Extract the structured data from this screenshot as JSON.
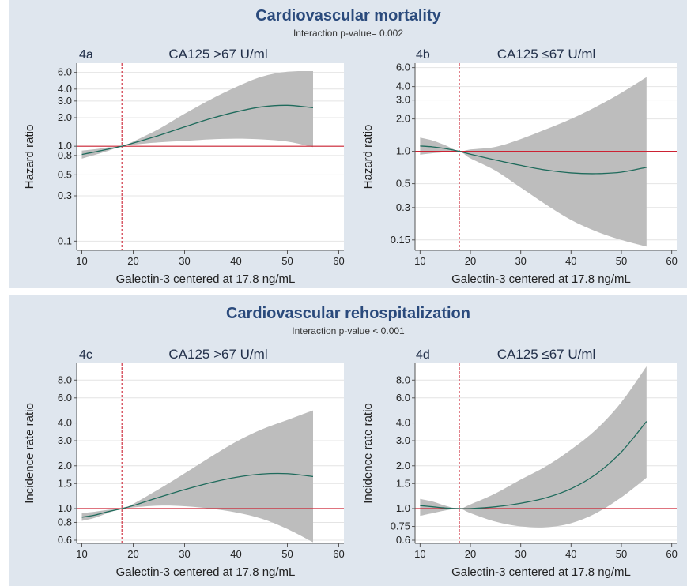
{
  "colors": {
    "background": "#dfe6ee",
    "plot_background": "#ffffff",
    "title": "#2a4a7c",
    "ci_band": "#bdbdbd",
    "fit_line": "#1f6b5c",
    "reference_line": "#cc2233",
    "grid": "#e4e4e4"
  },
  "sections": [
    {
      "title": "Cardiovascular mortality",
      "subtitle": "Interaction p-value= 0.002"
    },
    {
      "title": "Cardiovascular rehospitalization",
      "subtitle": "Interaction p-value < 0.001"
    }
  ],
  "chart_data": [
    {
      "type": "line",
      "panel_tag": "4a",
      "title": "CA125 >67 U/ml",
      "xlabel": "Galectin-3 centered at 17.8 ng/mL",
      "ylabel": "Hazard ratio",
      "xlim": [
        9,
        61
      ],
      "xticks": [
        10,
        20,
        30,
        40,
        50,
        60
      ],
      "ylim": [
        0.08,
        7.5
      ],
      "y_scale": "log",
      "yticks": [
        0.1,
        0.3,
        0.5,
        0.8,
        1.0,
        2.0,
        3.0,
        4.0,
        6.0
      ],
      "ytick_labels": [
        "0.1",
        "0.3",
        "0.5",
        "0.8",
        "1.0",
        "2.0",
        "3.0",
        "4.0",
        "6.0"
      ],
      "grid": true,
      "reference_y": 1.0,
      "reference_x": 17.8,
      "x": [
        10,
        12.5,
        15,
        17.8,
        20,
        25,
        30,
        35,
        40,
        45,
        50,
        55
      ],
      "estimate": [
        0.82,
        0.87,
        0.93,
        1.0,
        1.08,
        1.3,
        1.6,
        1.95,
        2.3,
        2.6,
        2.7,
        2.55
      ],
      "lower": [
        0.74,
        0.81,
        0.89,
        1.0,
        1.04,
        1.1,
        1.14,
        1.18,
        1.2,
        1.18,
        1.12,
        0.98
      ],
      "upper": [
        0.9,
        0.93,
        0.97,
        1.0,
        1.12,
        1.52,
        2.2,
        3.1,
        4.2,
        5.4,
        6.1,
        6.2
      ]
    },
    {
      "type": "line",
      "panel_tag": "4b",
      "title": "CA125 ≤67 U/ml",
      "xlabel": "Galectin-3 centered at 17.8 ng/mL",
      "ylabel": "Hazard ratio",
      "xlim": [
        9,
        61
      ],
      "xticks": [
        10,
        20,
        30,
        40,
        50,
        60
      ],
      "ylim": [
        0.12,
        6.6
      ],
      "y_scale": "log",
      "yticks": [
        0.15,
        0.3,
        0.5,
        1.0,
        2.0,
        3.0,
        4.0,
        6.0
      ],
      "ytick_labels": [
        "0.15",
        "0.3",
        "0.5",
        "1.0",
        "2.0",
        "3.0",
        "4.0",
        "6.0"
      ],
      "grid": true,
      "reference_y": 1.0,
      "reference_x": 17.8,
      "x": [
        10,
        12.5,
        15,
        17.8,
        20,
        25,
        30,
        35,
        40,
        45,
        50,
        55
      ],
      "estimate": [
        1.12,
        1.1,
        1.06,
        1.0,
        0.94,
        0.83,
        0.74,
        0.67,
        0.63,
        0.62,
        0.64,
        0.71
      ],
      "lower": [
        0.93,
        0.96,
        0.98,
        1.0,
        0.86,
        0.66,
        0.46,
        0.32,
        0.23,
        0.18,
        0.15,
        0.13
      ],
      "upper": [
        1.34,
        1.26,
        1.14,
        1.0,
        1.04,
        1.1,
        1.3,
        1.6,
        2.0,
        2.6,
        3.5,
        4.9
      ]
    },
    {
      "type": "line",
      "panel_tag": "4c",
      "title": "CA125 >67 U/ml",
      "xlabel": "Galectin-3 centered at 17.8 ng/mL",
      "ylabel": "Incidence rate ratio",
      "xlim": [
        9,
        61
      ],
      "xticks": [
        10,
        20,
        30,
        40,
        50,
        60
      ],
      "ylim": [
        0.57,
        10.5
      ],
      "y_scale": "log",
      "yticks": [
        0.6,
        0.8,
        1.0,
        1.5,
        2.0,
        3.0,
        4.0,
        6.0,
        8.0
      ],
      "ytick_labels": [
        "0.6",
        "0.8",
        "1.0",
        "1.5",
        "2.0",
        "3.0",
        "4.0",
        "6.0",
        "8.0"
      ],
      "grid": true,
      "reference_y": 1.0,
      "reference_x": 17.8,
      "x": [
        10,
        12.5,
        15,
        17.8,
        20,
        25,
        30,
        35,
        40,
        45,
        50,
        55
      ],
      "estimate": [
        0.87,
        0.9,
        0.95,
        1.0,
        1.05,
        1.2,
        1.36,
        1.52,
        1.66,
        1.75,
        1.76,
        1.68
      ],
      "lower": [
        0.82,
        0.86,
        0.93,
        1.0,
        1.02,
        1.05,
        1.04,
        1.0,
        0.94,
        0.85,
        0.72,
        0.58
      ],
      "upper": [
        0.93,
        0.95,
        0.98,
        1.0,
        1.08,
        1.37,
        1.77,
        2.3,
        2.95,
        3.6,
        4.2,
        4.9
      ]
    },
    {
      "type": "line",
      "panel_tag": "4d",
      "title": "CA125 ≤67 U/ml",
      "xlabel": "Galectin-3 centered at 17.8 ng/mL",
      "ylabel": "Incidence rate ratio",
      "xlim": [
        9,
        61
      ],
      "xticks": [
        10,
        20,
        30,
        40,
        50,
        60
      ],
      "ylim": [
        0.57,
        10.5
      ],
      "y_scale": "log",
      "yticks": [
        0.6,
        0.75,
        1.0,
        1.5,
        2.0,
        3.0,
        4.0,
        6.0,
        8.0
      ],
      "ytick_labels": [
        "0.6",
        "0.75",
        "1.0",
        "1.5",
        "2.0",
        "3.0",
        "4.0",
        "6.0",
        "8.0"
      ],
      "grid": true,
      "reference_y": 1.0,
      "reference_x": 17.8,
      "x": [
        10,
        12.5,
        15,
        17.8,
        20,
        25,
        30,
        35,
        40,
        45,
        50,
        55
      ],
      "estimate": [
        1.05,
        1.03,
        1.01,
        1.0,
        1.0,
        1.03,
        1.09,
        1.19,
        1.38,
        1.75,
        2.5,
        4.1
      ],
      "lower": [
        0.89,
        0.93,
        0.97,
        1.0,
        0.93,
        0.81,
        0.75,
        0.74,
        0.79,
        0.93,
        1.2,
        1.65
      ],
      "upper": [
        1.17,
        1.12,
        1.05,
        1.0,
        1.07,
        1.28,
        1.6,
        1.98,
        2.6,
        3.6,
        5.6,
        10.0
      ]
    }
  ]
}
